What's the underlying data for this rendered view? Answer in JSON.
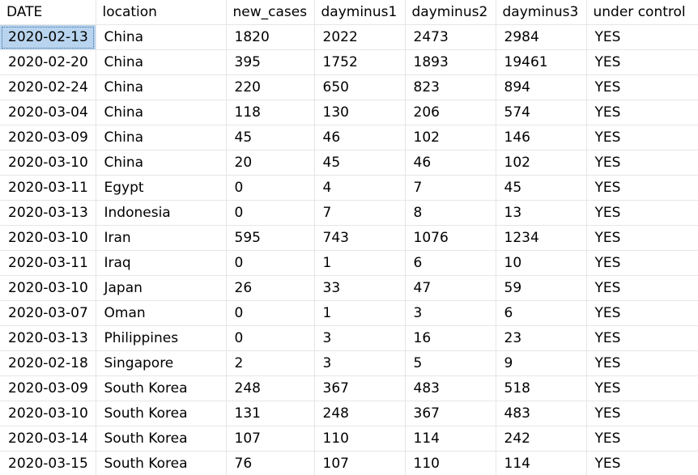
{
  "grid": {
    "columns": [
      "DATE",
      "location",
      "new_cases",
      "dayminus1",
      "dayminus2",
      "dayminus3",
      "under control"
    ],
    "selected_cell": "2020-02-13",
    "rows": [
      [
        "2020-02-13",
        "China",
        "1820",
        "2022",
        "2473",
        "2984",
        "YES"
      ],
      [
        "2020-02-20",
        "China",
        "395",
        "1752",
        "1893",
        "19461",
        "YES"
      ],
      [
        "2020-02-24",
        "China",
        "220",
        "650",
        "823",
        "894",
        "YES"
      ],
      [
        "2020-03-04",
        "China",
        "118",
        "130",
        "206",
        "574",
        "YES"
      ],
      [
        "2020-03-09",
        "China",
        "45",
        "46",
        "102",
        "146",
        "YES"
      ],
      [
        "2020-03-10",
        "China",
        "20",
        "45",
        "46",
        "102",
        "YES"
      ],
      [
        "2020-03-11",
        "Egypt",
        "0",
        "4",
        "7",
        "45",
        "YES"
      ],
      [
        "2020-03-13",
        "Indonesia",
        "0",
        "7",
        "8",
        "13",
        "YES"
      ],
      [
        "2020-03-10",
        "Iran",
        "595",
        "743",
        "1076",
        "1234",
        "YES"
      ],
      [
        "2020-03-11",
        "Iraq",
        "0",
        "1",
        "6",
        "10",
        "YES"
      ],
      [
        "2020-03-10",
        "Japan",
        "26",
        "33",
        "47",
        "59",
        "YES"
      ],
      [
        "2020-03-07",
        "Oman",
        "0",
        "1",
        "3",
        "6",
        "YES"
      ],
      [
        "2020-03-13",
        "Philippines",
        "0",
        "3",
        "16",
        "23",
        "YES"
      ],
      [
        "2020-02-18",
        "Singapore",
        "2",
        "3",
        "5",
        "9",
        "YES"
      ],
      [
        "2020-03-09",
        "South Korea",
        "248",
        "367",
        "483",
        "518",
        "YES"
      ],
      [
        "2020-03-10",
        "South Korea",
        "131",
        "248",
        "367",
        "483",
        "YES"
      ],
      [
        "2020-03-14",
        "South Korea",
        "107",
        "110",
        "114",
        "242",
        "YES"
      ],
      [
        "2020-03-15",
        "South Korea",
        "76",
        "107",
        "110",
        "114",
        "YES"
      ]
    ]
  },
  "colors": {
    "selection": "#b9d4ee",
    "gridline": "#e6e6e6"
  }
}
